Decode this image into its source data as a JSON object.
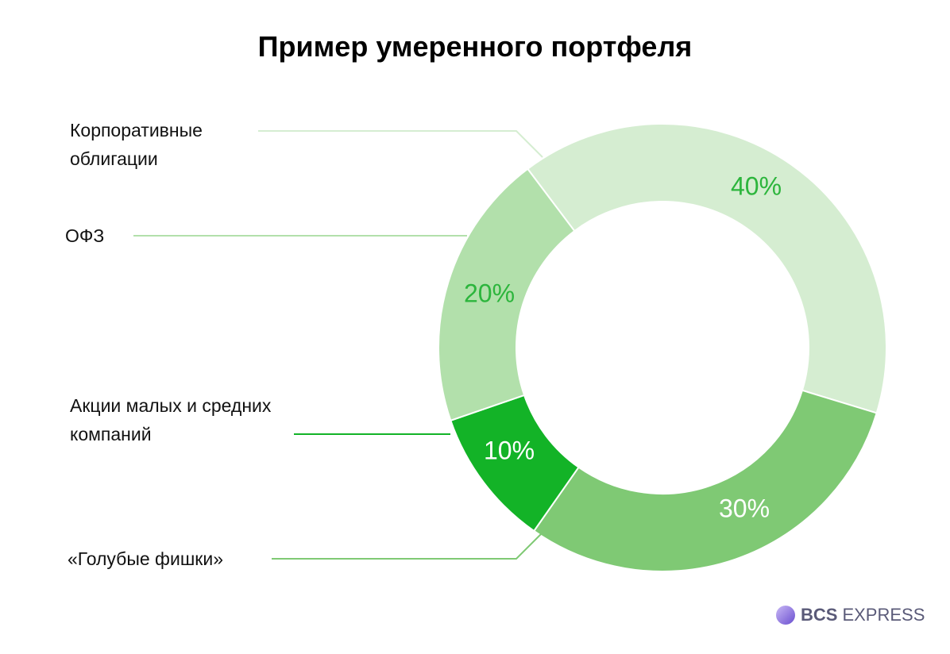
{
  "chart_data": {
    "type": "donut",
    "title": "Пример умеренного портфеля",
    "categories": [
      "Корпоративные облигации",
      "«Голубые фишки»",
      "Акции малых и средних компаний",
      "ОФЗ"
    ],
    "values": [
      40,
      30,
      10,
      20
    ],
    "value_labels": [
      "40%",
      "30%",
      "10%",
      "20%"
    ],
    "colors": [
      "#d5edd1",
      "#7fc974",
      "#13b327",
      "#b2e0ab"
    ],
    "value_label_colors": [
      "#2cb53c",
      "#ffffff",
      "#ffffff",
      "#2cb53c"
    ]
  },
  "logo": {
    "brand": "BCS",
    "product": "EXPRESS"
  }
}
